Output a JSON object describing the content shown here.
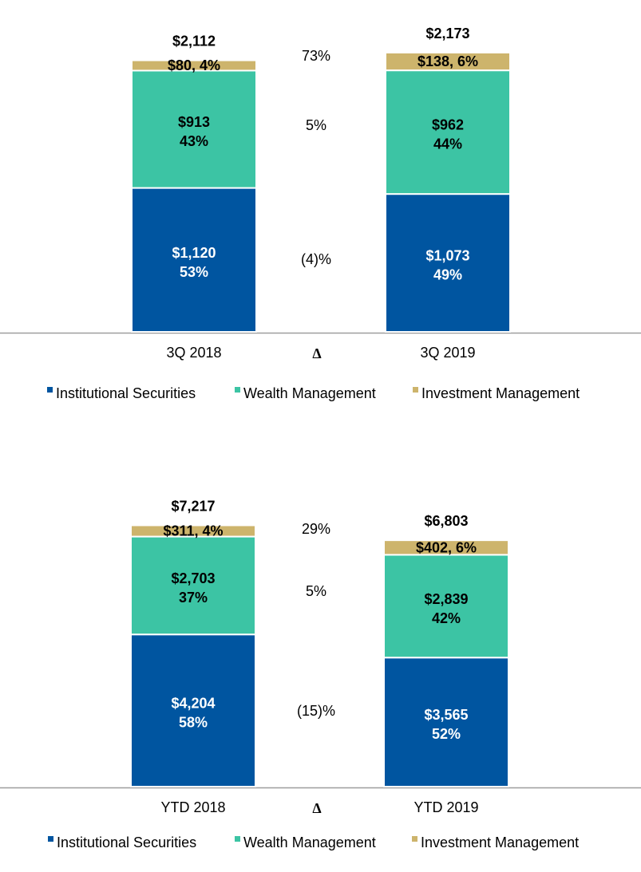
{
  "colors": {
    "institutional": "#0055a0",
    "wealth": "#3cc4a4",
    "investment": "#cdb46c",
    "axis": "#9e9e9e",
    "text_dark": "#000000",
    "text_light": "#ffffff"
  },
  "legend": [
    "Institutional Securities",
    "Wealth Management",
    "Investment Management"
  ],
  "chart_data": [
    {
      "type": "bar",
      "stacked": true,
      "categories": [
        "3Q 2018",
        "3Q 2019"
      ],
      "delta_label": "Δ",
      "series": [
        {
          "name": "Institutional Securities",
          "values": [
            1120,
            1073
          ],
          "labels": [
            "$1,120",
            "$1,073"
          ],
          "pcts": [
            "53%",
            "49%"
          ],
          "delta": "(4)%"
        },
        {
          "name": "Wealth Management",
          "values": [
            913,
            962
          ],
          "labels": [
            "$913",
            "$962"
          ],
          "pcts": [
            "43%",
            "44%"
          ],
          "delta": "5%"
        },
        {
          "name": "Investment Management",
          "values": [
            80,
            138
          ],
          "labels": [
            "$80, 4%",
            "$138, 6%"
          ],
          "pcts": [
            "",
            ""
          ],
          "delta": "73%"
        }
      ],
      "totals": [
        2112,
        2173
      ],
      "total_labels": [
        "$2,112",
        "$2,173"
      ]
    },
    {
      "type": "bar",
      "stacked": true,
      "categories": [
        "YTD 2018",
        "YTD 2019"
      ],
      "delta_label": "Δ",
      "series": [
        {
          "name": "Institutional Securities",
          "values": [
            4204,
            3565
          ],
          "labels": [
            "$4,204",
            "$3,565"
          ],
          "pcts": [
            "58%",
            "52%"
          ],
          "delta": "(15)%"
        },
        {
          "name": "Wealth Management",
          "values": [
            2703,
            2839
          ],
          "labels": [
            "$2,703",
            "$2,839"
          ],
          "pcts": [
            "37%",
            "42%"
          ],
          "delta": "5%"
        },
        {
          "name": "Investment Management",
          "values": [
            311,
            402
          ],
          "labels": [
            "$311, 4%",
            "$402, 6%"
          ],
          "pcts": [
            "",
            ""
          ],
          "delta": "29%"
        }
      ],
      "totals": [
        7217,
        6803
      ],
      "total_labels": [
        "$7,217",
        "$6,803"
      ]
    }
  ]
}
